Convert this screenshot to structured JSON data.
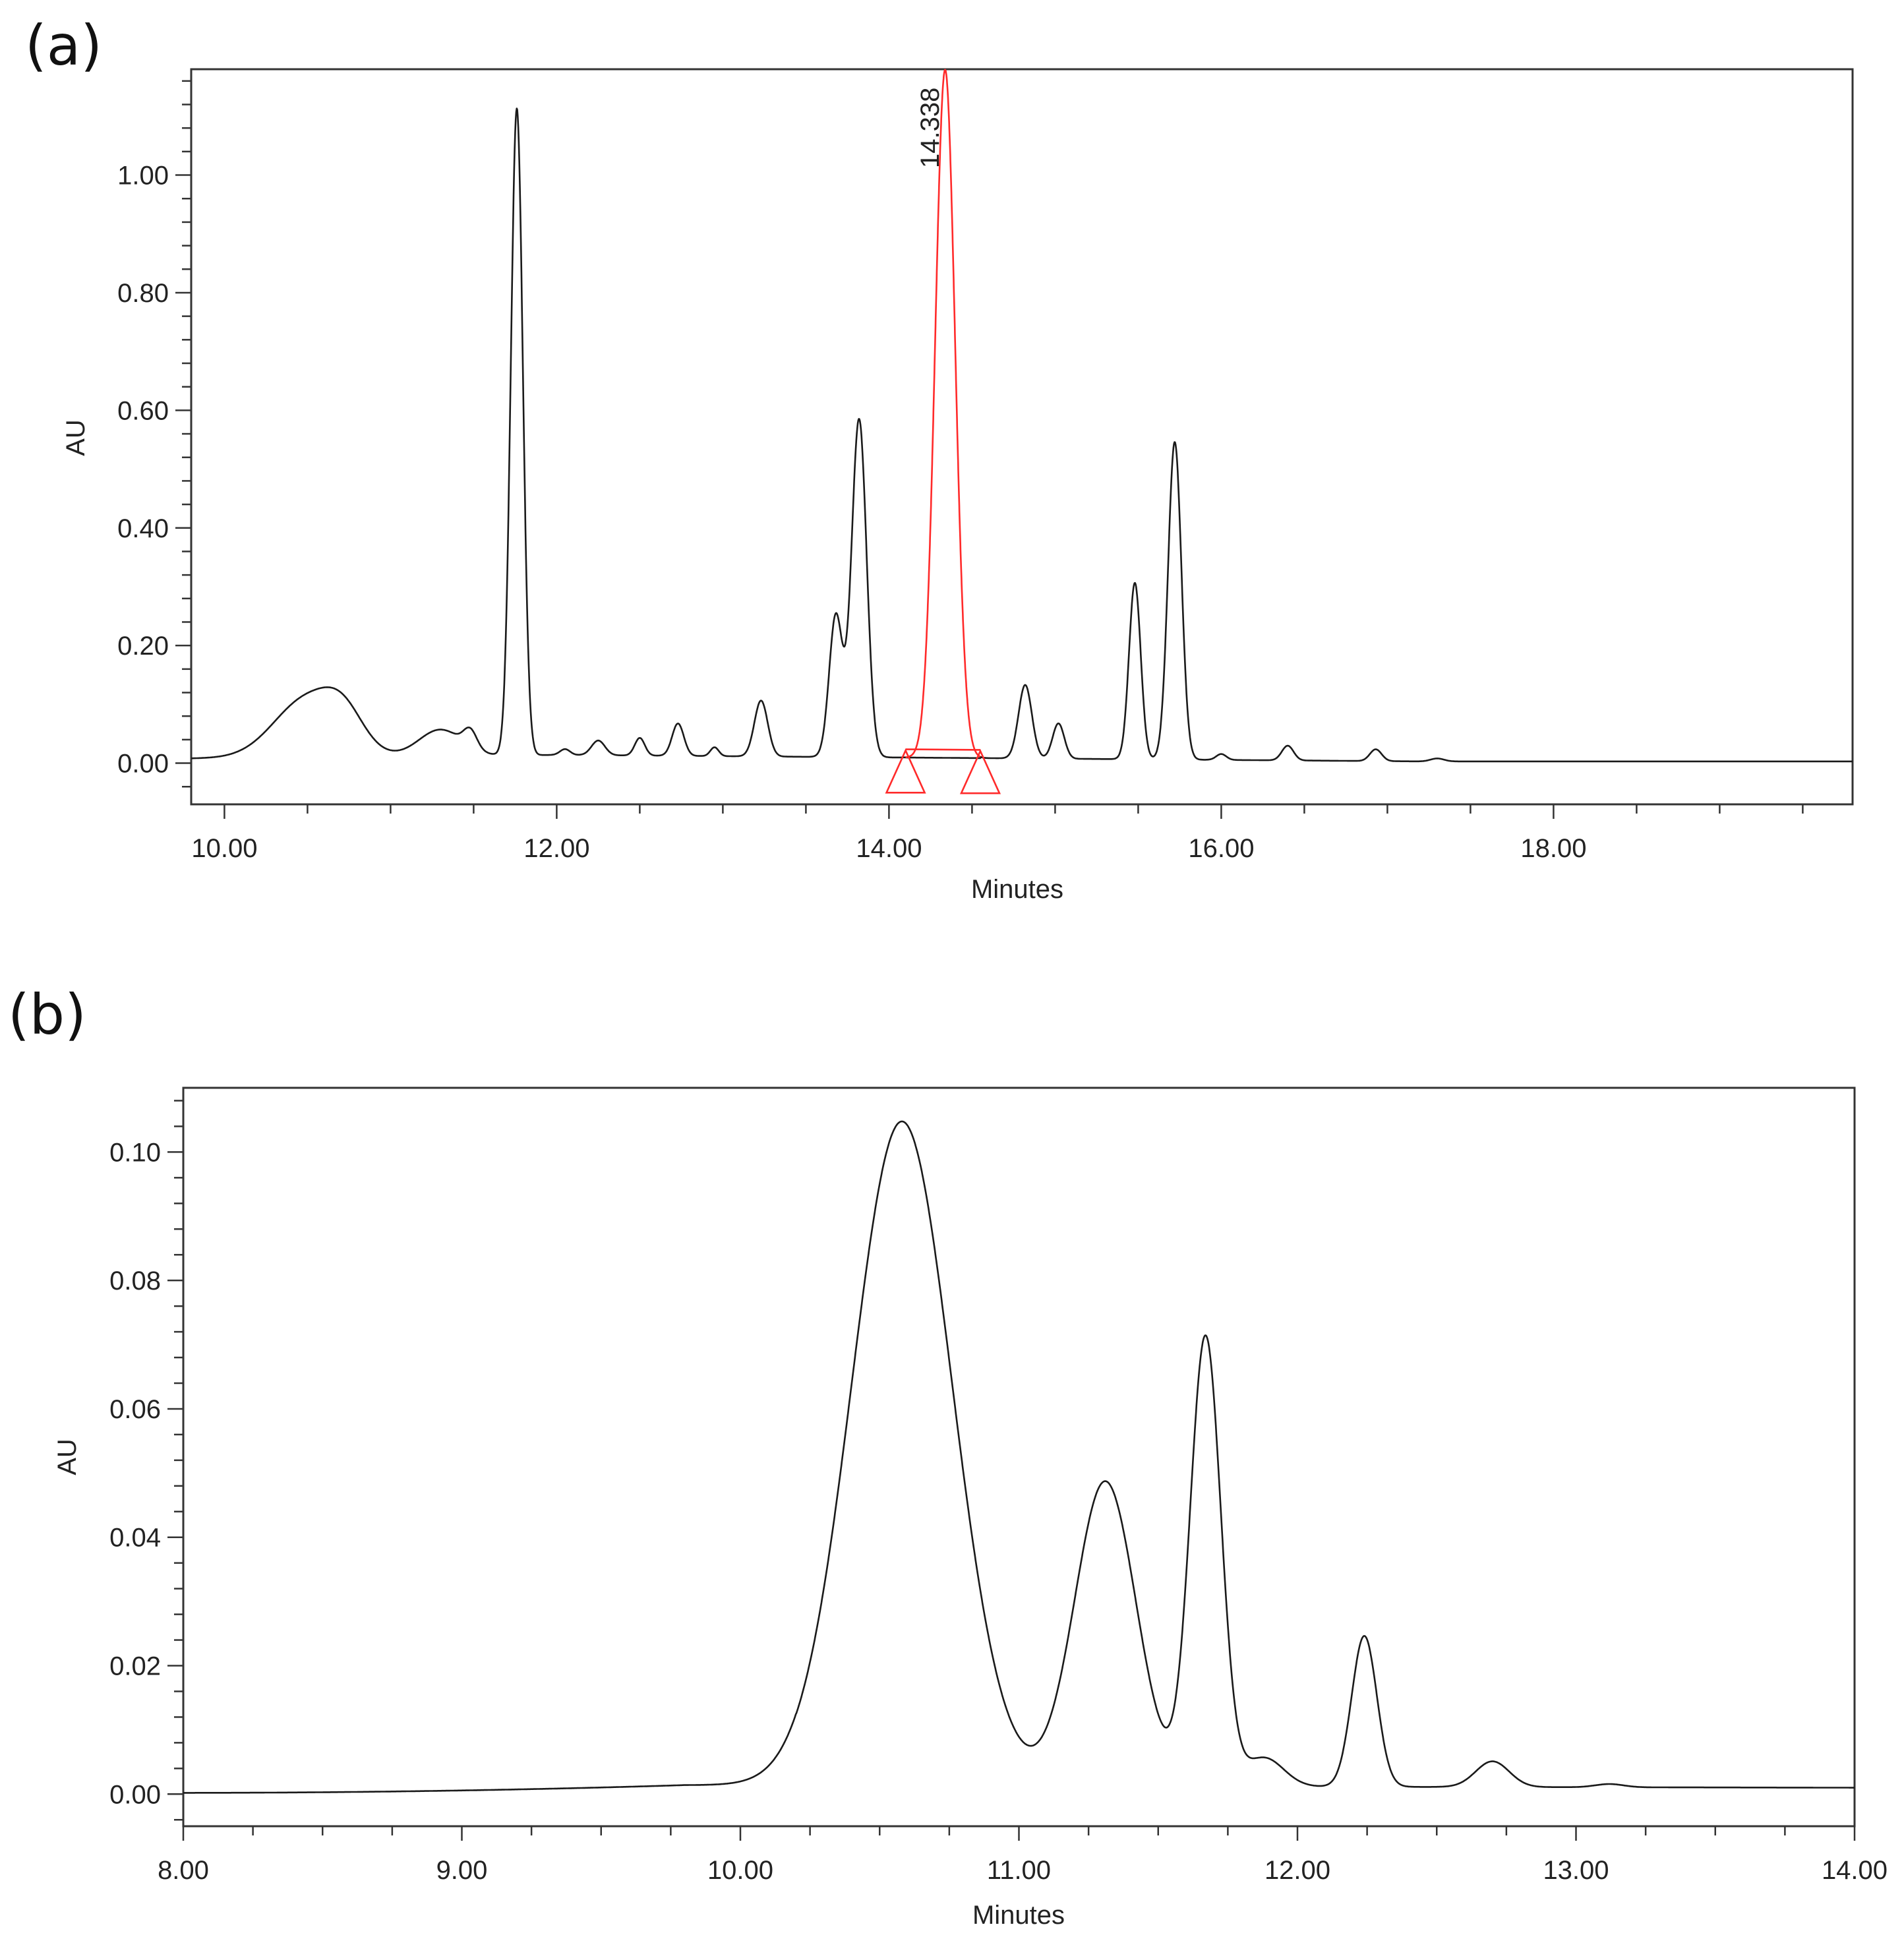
{
  "chart_data": [
    {
      "panel": "(a)",
      "type": "line",
      "title": "",
      "xlabel": "Minutes",
      "ylabel": "AU",
      "xlim": [
        9.8,
        19.8
      ],
      "ylim": [
        -0.07,
        1.18
      ],
      "x_ticks": [
        "10.00",
        "12.00",
        "14.00",
        "16.00",
        "18.00"
      ],
      "y_ticks": [
        "0.00",
        "0.20",
        "0.40",
        "0.60",
        "0.80",
        "1.00"
      ],
      "grid": false,
      "legend": "none",
      "colors": {
        "trace": "#1a1a1a",
        "highlight": "#ff2a2a"
      },
      "peaks": [
        {
          "rt": 10.5,
          "height": 0.1,
          "width": 0.2
        },
        {
          "rt": 10.72,
          "height": 0.05,
          "width": 0.12
        },
        {
          "rt": 11.3,
          "height": 0.045,
          "width": 0.13
        },
        {
          "rt": 11.48,
          "height": 0.03,
          "width": 0.04
        },
        {
          "rt": 11.76,
          "height": 1.1,
          "width": 0.036
        },
        {
          "rt": 12.05,
          "height": 0.01,
          "width": 0.03
        },
        {
          "rt": 12.25,
          "height": 0.025,
          "width": 0.04
        },
        {
          "rt": 12.5,
          "height": 0.03,
          "width": 0.03
        },
        {
          "rt": 12.73,
          "height": 0.055,
          "width": 0.035
        },
        {
          "rt": 12.95,
          "height": 0.015,
          "width": 0.025
        },
        {
          "rt": 13.23,
          "height": 0.095,
          "width": 0.04
        },
        {
          "rt": 13.68,
          "height": 0.24,
          "width": 0.04
        },
        {
          "rt": 13.82,
          "height": 0.575,
          "width": 0.045
        },
        {
          "rt": 14.82,
          "height": 0.125,
          "width": 0.04
        },
        {
          "rt": 15.02,
          "height": 0.06,
          "width": 0.035
        },
        {
          "rt": 15.48,
          "height": 0.3,
          "width": 0.035
        },
        {
          "rt": 15.72,
          "height": 0.54,
          "width": 0.04
        },
        {
          "rt": 16.0,
          "height": 0.01,
          "width": 0.03
        },
        {
          "rt": 16.4,
          "height": 0.025,
          "width": 0.035
        },
        {
          "rt": 16.93,
          "height": 0.02,
          "width": 0.035
        },
        {
          "rt": 17.3,
          "height": 0.005,
          "width": 0.04
        }
      ],
      "highlight_peak": {
        "label": "14.338",
        "rt": 14.338,
        "height": 1.17,
        "width": 0.06,
        "start": 14.1,
        "end": 14.55
      }
    },
    {
      "panel": "(b)",
      "type": "line",
      "title": "",
      "xlabel": "Minutes",
      "ylabel": "AU",
      "xlim": [
        8.0,
        14.0
      ],
      "ylim": [
        -0.005,
        0.11
      ],
      "x_ticks": [
        "8.00",
        "9.00",
        "10.00",
        "11.00",
        "12.00",
        "13.00",
        "14.00"
      ],
      "y_ticks": [
        "0.00",
        "0.02",
        "0.04",
        "0.06",
        "0.08",
        "0.10"
      ],
      "grid": false,
      "legend": "none",
      "colors": {
        "trace": "#1a1a1a"
      },
      "peaks": [
        {
          "rt": 10.58,
          "height": 0.1035,
          "width": 0.18
        },
        {
          "rt": 11.31,
          "height": 0.0475,
          "width": 0.11
        },
        {
          "rt": 11.67,
          "height": 0.07,
          "width": 0.055
        },
        {
          "rt": 11.88,
          "height": 0.0045,
          "width": 0.07
        },
        {
          "rt": 12.24,
          "height": 0.0235,
          "width": 0.045
        },
        {
          "rt": 12.7,
          "height": 0.004,
          "width": 0.06
        },
        {
          "rt": 13.12,
          "height": 0.0005,
          "width": 0.05
        }
      ]
    }
  ]
}
